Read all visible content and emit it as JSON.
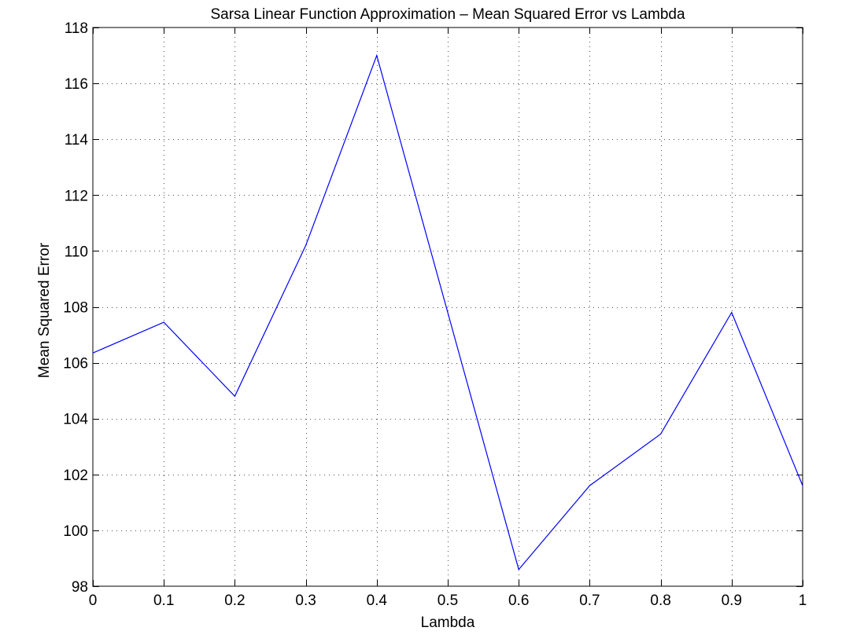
{
  "chart_data": {
    "type": "line",
    "title": "Sarsa Linear Function Approximation – Mean Squared Error vs Lambda",
    "xlabel": "Lambda",
    "ylabel": "Mean Squared Error",
    "xlim": [
      0,
      1
    ],
    "ylim": [
      98,
      118
    ],
    "grid": true,
    "x_ticks": [
      "0",
      "0.1",
      "0.2",
      "0.3",
      "0.4",
      "0.5",
      "0.6",
      "0.7",
      "0.8",
      "0.9",
      "1"
    ],
    "x_tick_values": [
      0,
      0.1,
      0.2,
      0.3,
      0.4,
      0.5,
      0.6,
      0.7,
      0.8,
      0.9,
      1
    ],
    "y_ticks": [
      "98",
      "100",
      "102",
      "104",
      "106",
      "108",
      "110",
      "112",
      "114",
      "116",
      "118"
    ],
    "y_tick_values": [
      98,
      100,
      102,
      104,
      106,
      108,
      110,
      112,
      114,
      116,
      118
    ],
    "series": [
      {
        "color": "#0000ff",
        "x": [
          0,
          0.1,
          0.2,
          0.3,
          0.4,
          0.5,
          0.6,
          0.7,
          0.8,
          0.9,
          1
        ],
        "y": [
          106.35,
          107.45,
          104.8,
          110.2,
          117.0,
          107.8,
          98.6,
          101.6,
          103.45,
          107.8,
          101.6
        ]
      }
    ]
  }
}
